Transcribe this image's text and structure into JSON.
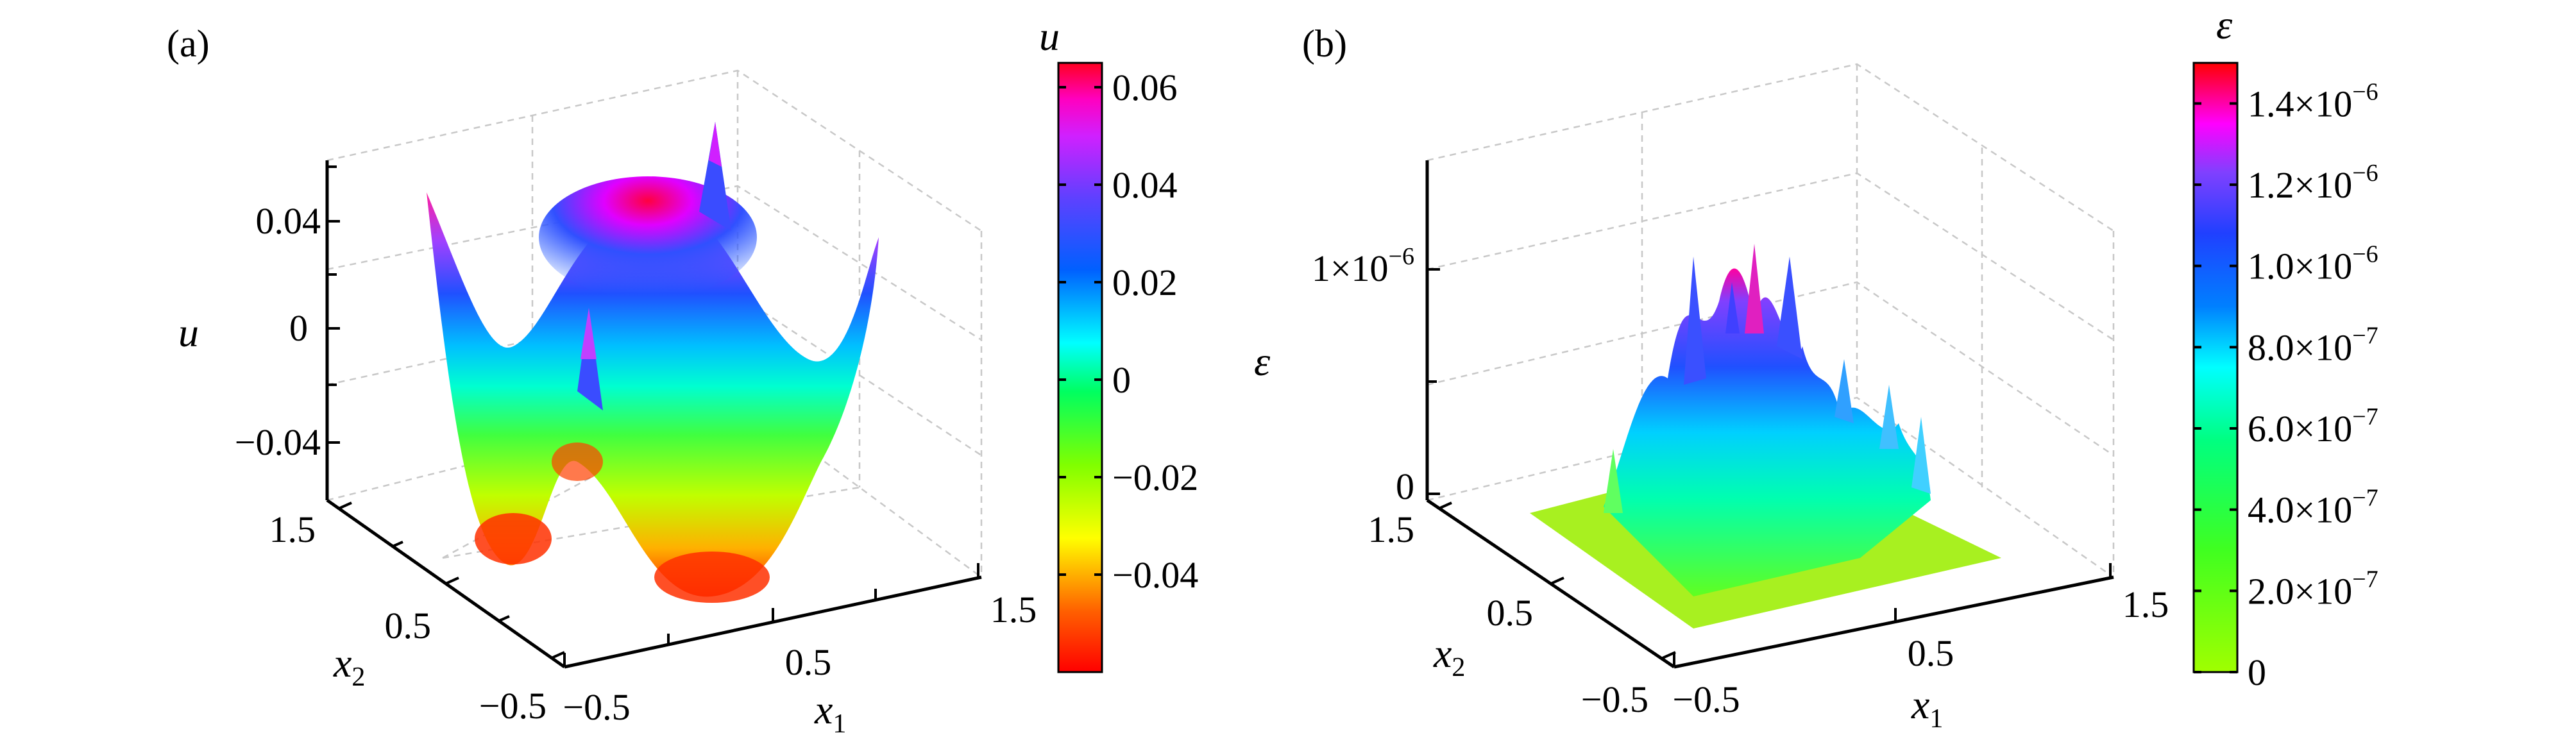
{
  "chart_data": [
    {
      "type": "surface",
      "panel_label": "(a)",
      "z_label": "u",
      "x_label": "x",
      "x_label_sub": "1",
      "y_label": "x",
      "y_label_sub": "2",
      "x_ticks": [
        "−0.5",
        "0.5",
        "1.5"
      ],
      "y_ticks": [
        "−0.5",
        "0.5",
        "1.5"
      ],
      "z_ticks": [
        "−0.04",
        "0",
        "0.04"
      ],
      "xlim": [
        -0.5,
        1.5
      ],
      "ylim": [
        -0.5,
        1.5
      ],
      "zlim": [
        -0.06,
        0.06
      ],
      "grid": true,
      "colorbar": {
        "title": "u",
        "range": [
          -0.06,
          0.065
        ],
        "ticks": [
          "0.06",
          "0.04",
          "0.02",
          "0",
          "−0.02",
          "−0.04"
        ],
        "tick_values": [
          0.06,
          0.04,
          0.02,
          0,
          -0.02,
          -0.04
        ]
      }
    },
    {
      "type": "surface",
      "panel_label": "(b)",
      "z_label": "ε",
      "x_label": "x",
      "x_label_sub": "1",
      "y_label": "x",
      "y_label_sub": "2",
      "x_ticks": [
        "−0.5",
        "0.5",
        "1.5"
      ],
      "y_ticks": [
        "−0.5",
        "0.5",
        "1.5"
      ],
      "z_ticks": [
        {
          "text": "0",
          "exp": ""
        },
        {
          "text": "1×10",
          "exp": "−6"
        }
      ],
      "xlim": [
        -0.5,
        1.5
      ],
      "ylim": [
        -0.5,
        1.5
      ],
      "zlim": [
        0,
        1.5e-06
      ],
      "grid": true,
      "colorbar": {
        "title": "ε",
        "range": [
          0,
          1.5e-06
        ],
        "ticks": [
          {
            "text": "1.4×10",
            "exp": "−6"
          },
          {
            "text": "1.2×10",
            "exp": "−6"
          },
          {
            "text": "1.0×10",
            "exp": "−6"
          },
          {
            "text": "8.0×10",
            "exp": "−7"
          },
          {
            "text": "6.0×10",
            "exp": "−7"
          },
          {
            "text": "4.0×10",
            "exp": "−7"
          },
          {
            "text": "2.0×10",
            "exp": "−7"
          },
          {
            "text": "0",
            "exp": ""
          }
        ],
        "tick_values": [
          1.4e-06,
          1.2e-06,
          1e-06,
          8e-07,
          6e-07,
          4e-07,
          2e-07,
          0
        ]
      }
    }
  ],
  "colormap": [
    "#ff0000",
    "#ff8000",
    "#ffff00",
    "#80ff00",
    "#00ff40",
    "#00ffff",
    "#0040ff",
    "#8040ff",
    "#ff00ff",
    "#ff0040"
  ]
}
